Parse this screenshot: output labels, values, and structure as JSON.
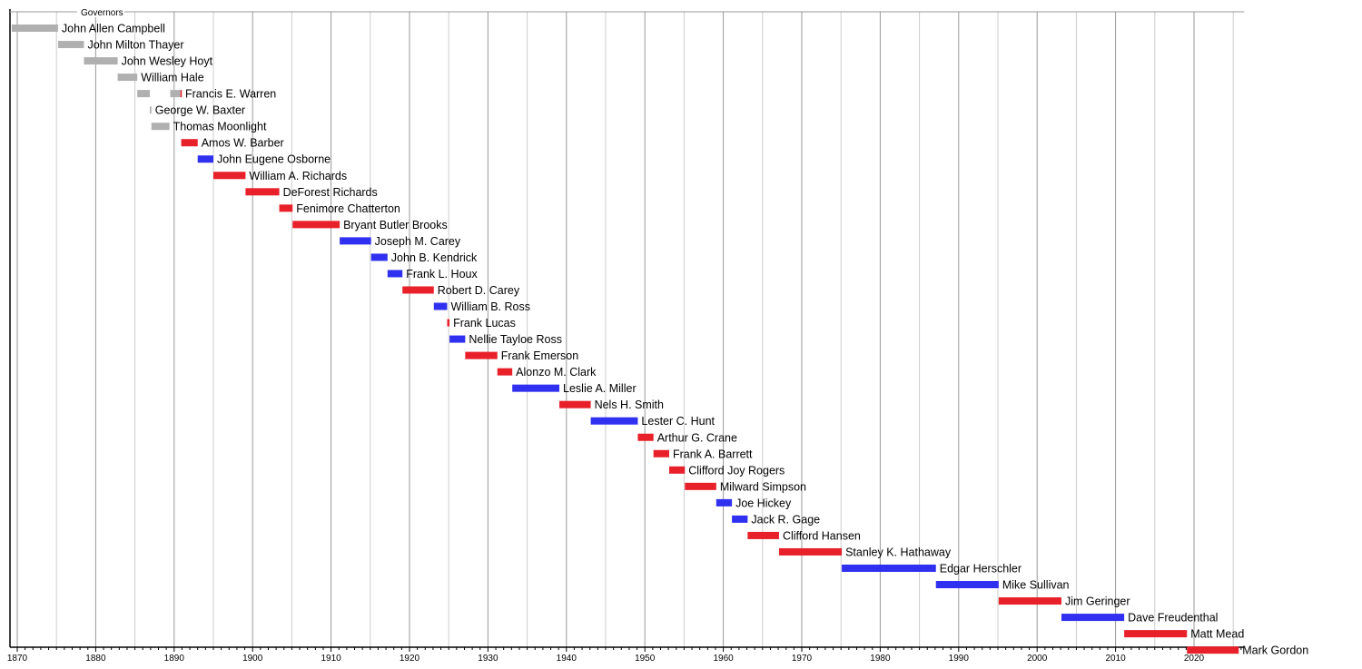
{
  "chart_data": {
    "type": "timeline",
    "title": "Governors",
    "xlim": [
      1869.3,
      2026.4
    ],
    "x_ticks": [
      1870,
      1880,
      1890,
      1900,
      1910,
      1920,
      1930,
      1940,
      1950,
      1960,
      1970,
      1980,
      1990,
      2000,
      2010,
      2020
    ],
    "grid": true,
    "colors": {
      "territorial": "#b0b0b0",
      "republican": "#e8202a",
      "democrat": "#3030f0"
    },
    "rows": [
      {
        "name": "John Allen Campbell",
        "spans": [
          {
            "start": 1869.3,
            "end": 1875.2,
            "party": "territorial"
          }
        ]
      },
      {
        "name": "John Milton Thayer",
        "spans": [
          {
            "start": 1875.2,
            "end": 1878.5,
            "party": "territorial"
          }
        ]
      },
      {
        "name": "John Wesley Hoyt",
        "spans": [
          {
            "start": 1878.5,
            "end": 1882.8,
            "party": "territorial"
          }
        ]
      },
      {
        "name": "William Hale",
        "spans": [
          {
            "start": 1882.8,
            "end": 1885.3,
            "party": "territorial"
          }
        ]
      },
      {
        "name": "Francis E. Warren",
        "spans": [
          {
            "start": 1885.3,
            "end": 1886.9,
            "party": "territorial"
          },
          {
            "start": 1889.5,
            "end": 1890.8,
            "party": "territorial"
          },
          {
            "start": 1890.8,
            "end": 1890.95,
            "party": "republican"
          }
        ]
      },
      {
        "name": "George W. Baxter",
        "spans": [
          {
            "start": 1886.9,
            "end": 1887.1,
            "party": "territorial"
          }
        ]
      },
      {
        "name": "Thomas Moonlight",
        "spans": [
          {
            "start": 1887.1,
            "end": 1889.4,
            "party": "territorial"
          }
        ]
      },
      {
        "name": "Amos W. Barber",
        "spans": [
          {
            "start": 1890.9,
            "end": 1893.0,
            "party": "republican"
          }
        ]
      },
      {
        "name": "John Eugene Osborne",
        "spans": [
          {
            "start": 1893.0,
            "end": 1895.0,
            "party": "democrat"
          }
        ]
      },
      {
        "name": "William A. Richards",
        "spans": [
          {
            "start": 1895.0,
            "end": 1899.1,
            "party": "republican"
          }
        ]
      },
      {
        "name": "DeForest Richards",
        "spans": [
          {
            "start": 1899.1,
            "end": 1903.4,
            "party": "republican"
          }
        ]
      },
      {
        "name": "Fenimore Chatterton",
        "spans": [
          {
            "start": 1903.4,
            "end": 1905.1,
            "party": "republican"
          }
        ]
      },
      {
        "name": "Bryant Butler Brooks",
        "spans": [
          {
            "start": 1905.1,
            "end": 1911.1,
            "party": "republican"
          }
        ]
      },
      {
        "name": "Joseph M. Carey",
        "spans": [
          {
            "start": 1911.1,
            "end": 1915.1,
            "party": "democrat"
          }
        ]
      },
      {
        "name": "John B. Kendrick",
        "spans": [
          {
            "start": 1915.1,
            "end": 1917.2,
            "party": "democrat"
          }
        ]
      },
      {
        "name": "Frank L. Houx",
        "spans": [
          {
            "start": 1917.2,
            "end": 1919.1,
            "party": "democrat"
          }
        ]
      },
      {
        "name": "Robert D. Carey",
        "spans": [
          {
            "start": 1919.1,
            "end": 1923.1,
            "party": "republican"
          }
        ]
      },
      {
        "name": "William B. Ross",
        "spans": [
          {
            "start": 1923.1,
            "end": 1924.8,
            "party": "democrat"
          }
        ]
      },
      {
        "name": "Frank Lucas",
        "spans": [
          {
            "start": 1924.8,
            "end": 1925.1,
            "party": "republican"
          }
        ]
      },
      {
        "name": "Nellie Tayloe Ross",
        "spans": [
          {
            "start": 1925.1,
            "end": 1927.1,
            "party": "democrat"
          }
        ]
      },
      {
        "name": "Frank Emerson",
        "spans": [
          {
            "start": 1927.1,
            "end": 1931.2,
            "party": "republican"
          }
        ]
      },
      {
        "name": "Alonzo M. Clark",
        "spans": [
          {
            "start": 1931.2,
            "end": 1933.1,
            "party": "republican"
          }
        ]
      },
      {
        "name": "Leslie A. Miller",
        "spans": [
          {
            "start": 1933.1,
            "end": 1939.1,
            "party": "democrat"
          }
        ]
      },
      {
        "name": "Nels H. Smith",
        "spans": [
          {
            "start": 1939.1,
            "end": 1943.1,
            "party": "republican"
          }
        ]
      },
      {
        "name": "Lester C. Hunt",
        "spans": [
          {
            "start": 1943.1,
            "end": 1949.1,
            "party": "democrat"
          }
        ]
      },
      {
        "name": "Arthur G. Crane",
        "spans": [
          {
            "start": 1949.1,
            "end": 1951.1,
            "party": "republican"
          }
        ]
      },
      {
        "name": "Frank A. Barrett",
        "spans": [
          {
            "start": 1951.1,
            "end": 1953.1,
            "party": "republican"
          }
        ]
      },
      {
        "name": "Clifford Joy Rogers",
        "spans": [
          {
            "start": 1953.1,
            "end": 1955.1,
            "party": "republican"
          }
        ]
      },
      {
        "name": "Milward Simpson",
        "spans": [
          {
            "start": 1955.1,
            "end": 1959.1,
            "party": "republican"
          }
        ]
      },
      {
        "name": "Joe Hickey",
        "spans": [
          {
            "start": 1959.1,
            "end": 1961.1,
            "party": "democrat"
          }
        ]
      },
      {
        "name": "Jack R. Gage",
        "spans": [
          {
            "start": 1961.1,
            "end": 1963.1,
            "party": "democrat"
          }
        ]
      },
      {
        "name": "Clifford Hansen",
        "spans": [
          {
            "start": 1963.1,
            "end": 1967.1,
            "party": "republican"
          }
        ]
      },
      {
        "name": "Stanley K. Hathaway",
        "spans": [
          {
            "start": 1967.1,
            "end": 1975.1,
            "party": "republican"
          }
        ]
      },
      {
        "name": "Edgar Herschler",
        "spans": [
          {
            "start": 1975.1,
            "end": 1987.1,
            "party": "democrat"
          }
        ]
      },
      {
        "name": "Mike Sullivan",
        "spans": [
          {
            "start": 1987.1,
            "end": 1995.1,
            "party": "democrat"
          }
        ]
      },
      {
        "name": "Jim Geringer",
        "spans": [
          {
            "start": 1995.1,
            "end": 2003.1,
            "party": "republican"
          }
        ]
      },
      {
        "name": "Dave Freudenthal",
        "spans": [
          {
            "start": 2003.1,
            "end": 2011.1,
            "party": "democrat"
          }
        ]
      },
      {
        "name": "Matt Mead",
        "spans": [
          {
            "start": 2011.1,
            "end": 2019.1,
            "party": "republican"
          }
        ]
      },
      {
        "name": "Mark Gordon",
        "spans": [
          {
            "start": 2019.1,
            "end": 2025.7,
            "party": "republican"
          }
        ]
      }
    ]
  }
}
